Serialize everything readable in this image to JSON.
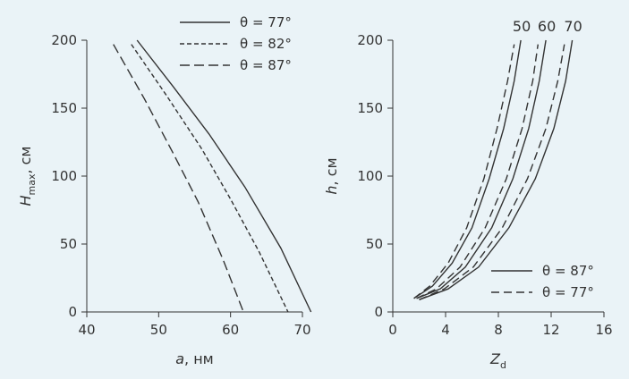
{
  "colors": {
    "background": "#eaf3f7",
    "ink": "#333333"
  },
  "chart_data": [
    {
      "type": "line",
      "xlabel": {
        "main": "a",
        "sep": ", ",
        "unit": "нм"
      },
      "ylabel": {
        "main": "H",
        "sub": "max",
        "sep": ", ",
        "unit": "см"
      },
      "xlim": [
        40,
        70
      ],
      "ylim": [
        0,
        200
      ],
      "xticks": [
        "40",
        "50",
        "60",
        "70"
      ],
      "yticks": [
        "0",
        "50",
        "100",
        "150",
        "200"
      ],
      "grid": false,
      "legend_position": "top-right",
      "series": [
        {
          "name": "θ = 77°",
          "style": "solid",
          "x": [
            47.0,
            52.0,
            57.0,
            62.0,
            67.0,
            71.2
          ],
          "y": [
            200,
            166,
            131,
            92,
            47,
            0
          ]
        },
        {
          "name": "θ = 82°",
          "style": "short-dash",
          "x": [
            46.2,
            51.0,
            56.0,
            60.0,
            64.0,
            68.0
          ],
          "y": [
            197,
            160,
            120,
            83,
            44,
            0
          ]
        },
        {
          "name": "θ = 87°",
          "style": "long-dash",
          "x": [
            43.7,
            48.0,
            52.0,
            55.5,
            59.0,
            61.8
          ],
          "y": [
            197,
            157,
            117,
            81,
            38,
            0
          ]
        }
      ]
    },
    {
      "type": "line",
      "xlabel": {
        "main": "Z",
        "sub": "d",
        "sep": "",
        "unit": ""
      },
      "ylabel": {
        "main": "h",
        "sep": ", ",
        "unit": "см"
      },
      "xlim": [
        0,
        16
      ],
      "ylim": [
        0,
        200
      ],
      "xticks": [
        "0",
        "4",
        "8",
        "12",
        "16"
      ],
      "yticks": [
        "0",
        "50",
        "100",
        "150",
        "200"
      ],
      "grid": false,
      "legend_position": "bottom-right",
      "legend": [
        {
          "name": "θ = 87°",
          "style": "solid"
        },
        {
          "name": "θ = 77°",
          "style": "dash"
        }
      ],
      "curve_labels": [
        "50",
        "60",
        "70"
      ],
      "series": [
        {
          "group": "50",
          "style": "solid",
          "x": [
            1.6,
            3.0,
            4.5,
            6.0,
            7.3,
            8.4,
            9.2,
            9.7
          ],
          "y": [
            10,
            19,
            36,
            62,
            98,
            135,
            170,
            200
          ]
        },
        {
          "group": "50",
          "style": "dash",
          "x": [
            1.6,
            2.8,
            4.2,
            5.6,
            6.9,
            7.9,
            8.7,
            9.2
          ],
          "y": [
            10,
            19,
            36,
            62,
            98,
            135,
            170,
            197
          ]
        },
        {
          "group": "60",
          "style": "solid",
          "x": [
            1.8,
            3.6,
            5.5,
            7.5,
            9.1,
            10.3,
            11.1,
            11.6
          ],
          "y": [
            10,
            17,
            33,
            62,
            98,
            135,
            170,
            200
          ]
        },
        {
          "group": "60",
          "style": "dash",
          "x": [
            1.8,
            3.3,
            5.1,
            7.0,
            8.6,
            9.8,
            10.6,
            11.0
          ],
          "y": [
            10,
            17,
            33,
            62,
            98,
            135,
            170,
            197
          ]
        },
        {
          "group": "70",
          "style": "solid",
          "x": [
            2.0,
            4.2,
            6.5,
            8.8,
            10.8,
            12.2,
            13.1,
            13.6
          ],
          "y": [
            9,
            17,
            33,
            62,
            98,
            135,
            170,
            200
          ]
        },
        {
          "group": "70",
          "style": "dash",
          "x": [
            2.0,
            3.9,
            6.1,
            8.3,
            10.2,
            11.6,
            12.5,
            13.0
          ],
          "y": [
            9,
            17,
            33,
            62,
            98,
            135,
            170,
            197
          ]
        }
      ]
    }
  ]
}
